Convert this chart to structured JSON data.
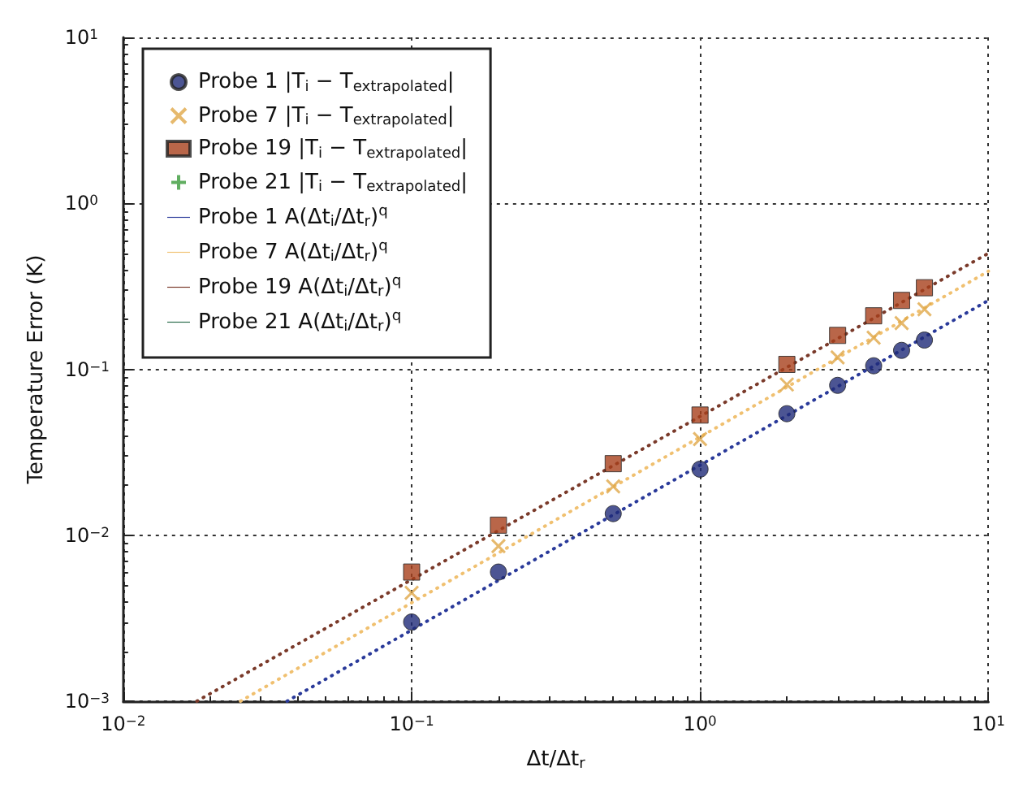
{
  "chart_data": {
    "type": "scatter",
    "xlabel": "Δt/Δt$_{r}$",
    "ylabel": "Temperature Error (K)",
    "log": "xy",
    "grid": true,
    "legend": "top left",
    "xlim": [
      0.01,
      10
    ],
    "ylim": [
      0.001,
      10
    ],
    "xticks": [
      {
        "value": 0.01,
        "label": "10$^{−2}$"
      },
      {
        "value": 0.1,
        "label": "10$^{−1}$"
      },
      {
        "value": 1,
        "label": "10$^{0}$"
      },
      {
        "value": 10,
        "label": "10$^{1}$"
      }
    ],
    "yticks": [
      {
        "value": 0.001,
        "label": "10$^{−3}$"
      },
      {
        "value": 0.01,
        "label": "10$^{−2}$"
      },
      {
        "value": 0.1,
        "label": "10$^{−1}$"
      },
      {
        "value": 1,
        "label": "10$^{0}$"
      },
      {
        "value": 10,
        "label": "10$^{1}$"
      }
    ],
    "x": [
      0.1,
      0.2,
      0.5,
      1,
      2,
      3,
      4,
      5,
      6
    ],
    "series": [
      {
        "name": "Probe 1 |T$_{i}$ − T$_{extrapolated}$|",
        "marker": "circle",
        "color": "#1f2a78",
        "values": [
          0.003,
          0.006,
          0.0135,
          0.025,
          0.054,
          0.08,
          0.105,
          0.13,
          0.15
        ]
      },
      {
        "name": "Probe 7 |T$_{i}$ − T$_{extrapolated}$|",
        "marker": "cross",
        "color": "#e0a848",
        "values": [
          0.0045,
          0.0086,
          0.0197,
          0.038,
          0.081,
          0.118,
          0.155,
          0.19,
          0.23
        ]
      },
      {
        "name": "Probe 19 |T$_{i}$ − T$_{extrapolated}$|",
        "marker": "square",
        "color": "#a8401c",
        "values": [
          0.006,
          0.0115,
          0.027,
          0.053,
          0.107,
          0.16,
          0.21,
          0.26,
          0.31
        ]
      },
      {
        "name": "Probe 21 |T$_{i}$ − T$_{extrapolated}$|",
        "marker": "plus",
        "color": "#3a9a3a",
        "values": [
          null,
          null,
          null,
          null,
          null,
          null,
          null,
          null,
          null
        ]
      },
      {
        "name": "Probe 1 A(Δt$_{i}$/Δt$_{r}$)$^{q}$",
        "type": "line",
        "line_style": "dotted",
        "marker": "none",
        "color": "#2a3a9a",
        "x": [
          0.037,
          10
        ],
        "values": [
          0.001,
          0.26
        ]
      },
      {
        "name": "Probe 7 A(Δt$_{i}$/Δt$_{r}$)$^{q}$",
        "type": "line",
        "line_style": "dotted",
        "marker": "none",
        "color": "#f0c070",
        "x": [
          0.0255,
          10
        ],
        "values": [
          0.001,
          0.39
        ]
      },
      {
        "name": "Probe 19 A(Δt$_{i}$/Δt$_{r}$)$^{q}$",
        "type": "line",
        "line_style": "dotted",
        "marker": "none",
        "color": "#7a3a2a",
        "x": [
          0.018,
          10
        ],
        "values": [
          0.001,
          0.5
        ]
      },
      {
        "name": "Probe 21 A(Δt$_{i}$/Δt$_{r}$)$^{q}$",
        "type": "line",
        "line_style": "dotted",
        "marker": "none",
        "color": "#2a6a4a",
        "values": [
          null,
          null,
          null,
          null,
          null,
          null,
          null,
          null,
          null
        ]
      }
    ]
  }
}
